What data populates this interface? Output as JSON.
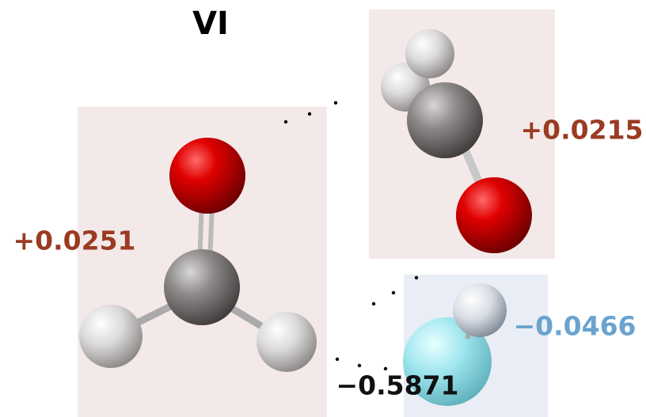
{
  "title": "VI",
  "labels": {
    "top_right": "+0.0215",
    "left": "+0.0251",
    "bottom_right_blue": "−0.0466",
    "bottom_right_black": "−0.5871"
  }
}
